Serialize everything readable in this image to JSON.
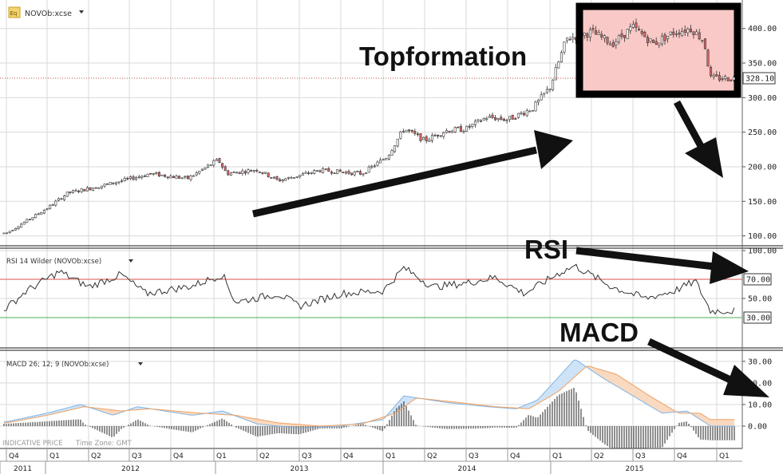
{
  "colors": {
    "grid": "#d9d9d9",
    "candle_up_fill": "#ffffff",
    "candle_down_fill": "#e06666",
    "candle_stroke": "#333333",
    "rsi_line": "#333333",
    "rsi_upper": "#d9534f",
    "rsi_lower": "#4caf50",
    "macd_line": "#7fb5e6",
    "signal_line": "#f0a060",
    "hist": "#222222",
    "highlight_fill": "#f8c9c6",
    "highlight_border": "#000000",
    "arrow": "#111111"
  },
  "icons": {
    "instrument": "stock-chart-icon",
    "dropdown": "chevron-down-icon"
  },
  "header": {
    "symbol": "NOVOb:xcse",
    "icon_label": "Eq"
  },
  "rsi_panel": {
    "title": "RSI 14 Wilder (NOVOb:xcse)"
  },
  "macd_panel": {
    "title": "MACD 26; 12; 9 (NOVOb:xcse)"
  },
  "footer": {
    "indicative": "INDICATIVE PRICE",
    "timezone": "Time Zone: GMT"
  },
  "annotations": {
    "topformation": "Topformation",
    "rsi": "RSI",
    "macd": "MACD"
  },
  "chart_data": [
    {
      "type": "candlestick",
      "panel": "price",
      "y_ticks": [
        "100.00",
        "150.00",
        "200.00",
        "250.00",
        "300.00",
        "350.00",
        "400.00"
      ],
      "ylim": [
        88,
        432
      ],
      "last_price_label": "328.10",
      "last_price": 328.1,
      "x_quarters": [
        "Q4",
        "Q1",
        "Q2",
        "Q3",
        "Q4",
        "Q1",
        "Q2",
        "Q3",
        "Q4",
        "Q1",
        "Q2",
        "Q3",
        "Q4",
        "Q1",
        "Q2",
        "Q3",
        "Q4",
        "Q1"
      ],
      "x_years": [
        "2011",
        "2012",
        "2013",
        "2014",
        "2015"
      ],
      "trend_anchors": [
        {
          "q": 0.0,
          "v": 104
        },
        {
          "q": 1.0,
          "v": 140
        },
        {
          "q": 1.5,
          "v": 162
        },
        {
          "q": 2.5,
          "v": 175
        },
        {
          "q": 3.5,
          "v": 190
        },
        {
          "q": 4.4,
          "v": 183
        },
        {
          "q": 5.1,
          "v": 210
        },
        {
          "q": 5.3,
          "v": 190
        },
        {
          "q": 6.0,
          "v": 196
        },
        {
          "q": 6.5,
          "v": 180
        },
        {
          "q": 7.5,
          "v": 195
        },
        {
          "q": 8.5,
          "v": 190
        },
        {
          "q": 9.1,
          "v": 215
        },
        {
          "q": 9.5,
          "v": 255
        },
        {
          "q": 10.0,
          "v": 238
        },
        {
          "q": 10.5,
          "v": 252
        },
        {
          "q": 11.0,
          "v": 255
        },
        {
          "q": 11.5,
          "v": 272
        },
        {
          "q": 12.0,
          "v": 268
        },
        {
          "q": 12.6,
          "v": 285
        },
        {
          "q": 13.0,
          "v": 315
        },
        {
          "q": 13.4,
          "v": 385
        },
        {
          "q": 14.0,
          "v": 395
        },
        {
          "q": 14.5,
          "v": 378
        },
        {
          "q": 15.0,
          "v": 402
        },
        {
          "q": 15.5,
          "v": 378
        },
        {
          "q": 16.0,
          "v": 395
        },
        {
          "q": 16.4,
          "v": 400
        },
        {
          "q": 16.7,
          "v": 382
        },
        {
          "q": 16.85,
          "v": 328
        }
      ]
    },
    {
      "type": "line",
      "panel": "rsi",
      "y_ticks": [
        "100.00",
        "70.00",
        "50.00",
        "30.00"
      ],
      "ylim": [
        0,
        100
      ],
      "upper_level": 70,
      "lower_level": 30,
      "upper_label": "70.00",
      "lower_label": "30.00",
      "anchors": [
        {
          "q": 0.0,
          "v": 40
        },
        {
          "q": 0.5,
          "v": 58
        },
        {
          "q": 1.3,
          "v": 78
        },
        {
          "q": 2.0,
          "v": 62
        },
        {
          "q": 2.8,
          "v": 75
        },
        {
          "q": 3.4,
          "v": 55
        },
        {
          "q": 4.5,
          "v": 63
        },
        {
          "q": 5.2,
          "v": 75
        },
        {
          "q": 5.5,
          "v": 46
        },
        {
          "q": 6.5,
          "v": 55
        },
        {
          "q": 7.0,
          "v": 42
        },
        {
          "q": 8.0,
          "v": 55
        },
        {
          "q": 9.0,
          "v": 58
        },
        {
          "q": 9.5,
          "v": 82
        },
        {
          "q": 10.2,
          "v": 62
        },
        {
          "q": 11.0,
          "v": 66
        },
        {
          "q": 11.7,
          "v": 72
        },
        {
          "q": 12.4,
          "v": 55
        },
        {
          "q": 13.2,
          "v": 76
        },
        {
          "q": 13.6,
          "v": 84
        },
        {
          "q": 14.5,
          "v": 62
        },
        {
          "q": 15.3,
          "v": 50
        },
        {
          "q": 16.0,
          "v": 58
        },
        {
          "q": 16.5,
          "v": 68
        },
        {
          "q": 16.85,
          "v": 37
        }
      ]
    },
    {
      "type": "line",
      "panel": "macd",
      "y_ticks": [
        "30.00",
        "20.00",
        "10.00",
        "0.00"
      ],
      "ylim": [
        -10,
        34
      ],
      "macd_anchors": [
        {
          "q": 0.0,
          "v": 2
        },
        {
          "q": 1.0,
          "v": 6
        },
        {
          "q": 1.8,
          "v": 10
        },
        {
          "q": 2.6,
          "v": 5
        },
        {
          "q": 3.2,
          "v": 9
        },
        {
          "q": 4.5,
          "v": 5
        },
        {
          "q": 5.2,
          "v": 7
        },
        {
          "q": 6.0,
          "v": 1
        },
        {
          "q": 7.0,
          "v": -1
        },
        {
          "q": 8.0,
          "v": 0
        },
        {
          "q": 9.0,
          "v": 3
        },
        {
          "q": 9.5,
          "v": 14
        },
        {
          "q": 10.5,
          "v": 11
        },
        {
          "q": 11.5,
          "v": 9
        },
        {
          "q": 12.2,
          "v": 8
        },
        {
          "q": 12.7,
          "v": 12
        },
        {
          "q": 13.6,
          "v": 31
        },
        {
          "q": 14.3,
          "v": 22
        },
        {
          "q": 15.0,
          "v": 14
        },
        {
          "q": 15.7,
          "v": 6
        },
        {
          "q": 16.3,
          "v": 7
        },
        {
          "q": 16.85,
          "v": 0
        }
      ],
      "signal_anchors": [
        {
          "q": 0.0,
          "v": 1.5
        },
        {
          "q": 1.0,
          "v": 5
        },
        {
          "q": 1.9,
          "v": 9
        },
        {
          "q": 2.8,
          "v": 7
        },
        {
          "q": 3.5,
          "v": 8
        },
        {
          "q": 4.7,
          "v": 6
        },
        {
          "q": 5.5,
          "v": 5
        },
        {
          "q": 6.5,
          "v": 1.5
        },
        {
          "q": 7.5,
          "v": 0
        },
        {
          "q": 8.5,
          "v": 1
        },
        {
          "q": 9.3,
          "v": 6
        },
        {
          "q": 9.8,
          "v": 13
        },
        {
          "q": 10.8,
          "v": 11
        },
        {
          "q": 11.7,
          "v": 9
        },
        {
          "q": 12.5,
          "v": 8
        },
        {
          "q": 13.2,
          "v": 16
        },
        {
          "q": 13.9,
          "v": 28
        },
        {
          "q": 14.6,
          "v": 24
        },
        {
          "q": 15.4,
          "v": 14
        },
        {
          "q": 16.1,
          "v": 6
        },
        {
          "q": 16.6,
          "v": 6
        },
        {
          "q": 16.85,
          "v": 3
        }
      ]
    }
  ]
}
